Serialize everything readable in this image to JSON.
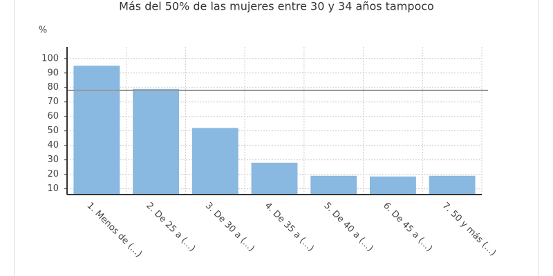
{
  "chart_data": {
    "type": "bar",
    "title": "Más del 50% de las mujeres entre 30 y 34 años tampoco",
    "y_label": "%",
    "categories": [
      "1. Menos de (...)",
      "2. De 25 a (...)",
      "3. De 30 a (...)",
      "4. De 35 a (...)",
      "5. De 40 a (...)",
      "6. De 45 a (...)",
      "7. 50 y más (...)"
    ],
    "values": [
      95,
      79,
      52,
      28,
      19,
      18.5,
      19
    ],
    "color": "#89b8e0",
    "reference_line": 78,
    "ylim": [
      6,
      108
    ],
    "yticks": [
      10,
      20,
      30,
      40,
      50,
      60,
      70,
      80,
      90,
      100
    ],
    "grid": true
  }
}
